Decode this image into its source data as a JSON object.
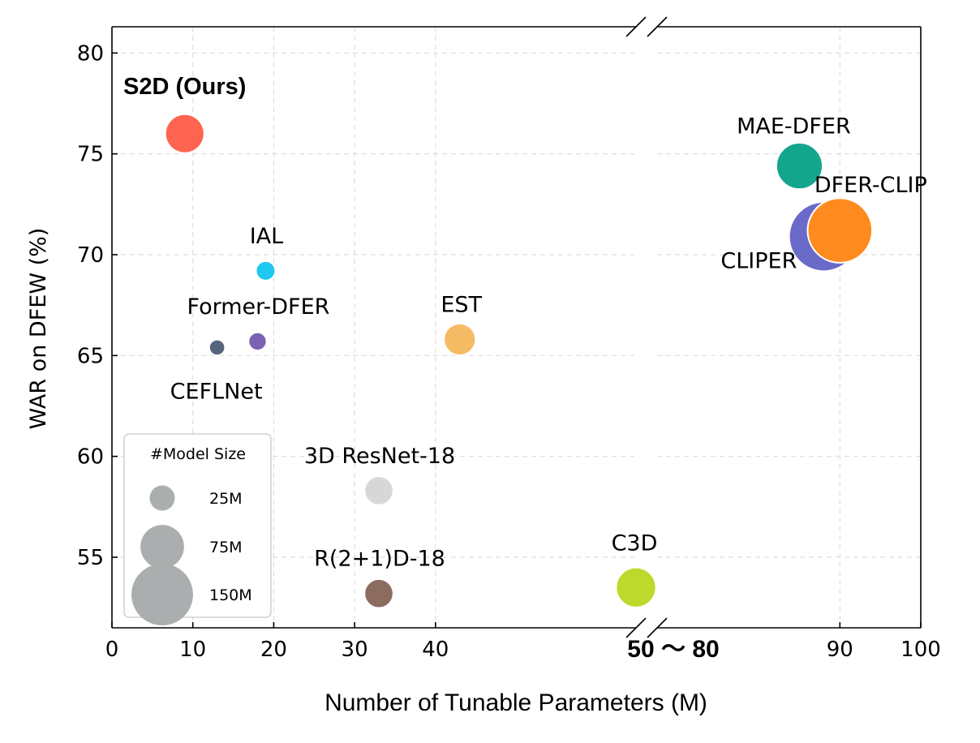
{
  "chart_data": {
    "type": "scatter",
    "title": "",
    "xlabel": "Number of Tunable Parameters (M)",
    "ylabel": "WAR on DFEW (%)",
    "xlim": [
      0,
      100
    ],
    "ylim": [
      51.5,
      81.3
    ],
    "x_break": {
      "from": 50,
      "to": 80,
      "label": "50 ～ 80"
    },
    "x_ticks": [
      "0",
      "10",
      "20",
      "30",
      "40",
      "90",
      "100"
    ],
    "y_ticks": [
      "55",
      "60",
      "65",
      "70",
      "75",
      "80"
    ],
    "y_tick_values": [
      55,
      60,
      65,
      70,
      75,
      80
    ],
    "grid": true,
    "points": [
      {
        "label": "S2D (Ours)",
        "x": 9,
        "y": 76.0,
        "size_m": 60,
        "color": "#ff6450",
        "highlight": true
      },
      {
        "label": "IAL",
        "x": 19,
        "y": 69.2,
        "size_m": 15,
        "color": "#1ec8f0"
      },
      {
        "label": "Former-DFER",
        "x": 18,
        "y": 65.7,
        "size_m": 13,
        "color": "#7b62b3"
      },
      {
        "label": "CEFLNet",
        "x": 13,
        "y": 65.4,
        "size_m": 10,
        "color": "#55657d"
      },
      {
        "label": "EST",
        "x": 43,
        "y": 65.8,
        "size_m": 40,
        "color": "#f5bb64"
      },
      {
        "label": "3D ResNet-18",
        "x": 33,
        "y": 58.3,
        "size_m": 33,
        "color": "#d7d7d7"
      },
      {
        "label": "R(2+1)D-18",
        "x": 33,
        "y": 53.2,
        "size_m": 33,
        "color": "#8c6c5f"
      },
      {
        "label": "C3D",
        "x": 78,
        "y": 53.5,
        "size_m": 63,
        "color": "#bcd92c"
      },
      {
        "label": "MAE-DFER",
        "x": 85,
        "y": 74.4,
        "size_m": 85,
        "color": "#14a68c"
      },
      {
        "label": "CLIPER",
        "x": 88,
        "y": 70.9,
        "size_m": 190,
        "color": "#6a6ac8"
      },
      {
        "label": "DFER-CLIP",
        "x": 90,
        "y": 71.2,
        "size_m": 165,
        "color": "#ff8a1e"
      }
    ],
    "legend": {
      "title": "#Model Size",
      "placement": "lower-left",
      "color": "#abaeaf",
      "entries": [
        {
          "label": "25M",
          "size_m": 25
        },
        {
          "label": "75M",
          "size_m": 75
        },
        {
          "label": "150M",
          "size_m": 150
        }
      ]
    }
  }
}
